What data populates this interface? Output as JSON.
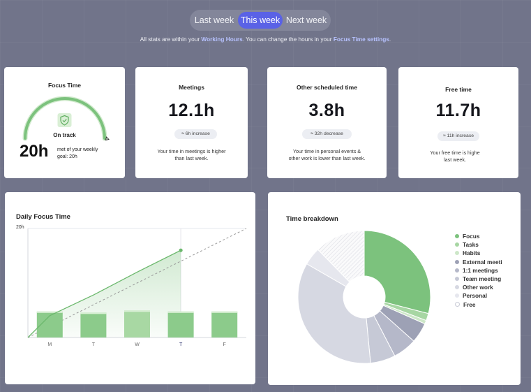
{
  "tabs": [
    {
      "label": "Last week"
    },
    {
      "label": "This week"
    },
    {
      "label": "Next week"
    }
  ],
  "note": {
    "part1": "All stats are within your ",
    "link1": "Working Hours",
    "part2": ". You can change the hours in your ",
    "link2": "Focus Time settings",
    "part3": "."
  },
  "focus": {
    "title": "Focus Time",
    "status": "On track",
    "value": "20h",
    "desc_line1": "met of your weekly",
    "desc_line2": "goal: 20h",
    "progress": 1.0
  },
  "meetings": {
    "title": "Meetings",
    "value": "12.1h",
    "badge": "≈ 6h increase",
    "desc_line1": "Your time in meetings is higher",
    "desc_line2": "than last week."
  },
  "other": {
    "title": "Other scheduled time",
    "value": "3.8h",
    "badge": "≈ 32h decrease",
    "desc_line1": "Your time in personal events &",
    "desc_line2": "other work is lower than last week."
  },
  "free": {
    "title": "Free time",
    "value": "11.7h",
    "badge": "≈ 11h increase",
    "desc_line1": "Your free time is highe",
    "desc_line2": "last week."
  },
  "daily": {
    "title": "Daily Focus Time",
    "ytick": "20h",
    "days": [
      "M",
      "T",
      "W",
      "T",
      "F"
    ]
  },
  "breakdown": {
    "title": "Time breakdown",
    "legend": [
      {
        "label": "Focus",
        "color": "#7cc27d"
      },
      {
        "label": "Tasks",
        "color": "#a7d6a3"
      },
      {
        "label": "Habits",
        "color": "#cde7c8"
      },
      {
        "label": "External meeti",
        "color": "#9da1b5"
      },
      {
        "label": "1:1 meetings",
        "color": "#b5b8c9"
      },
      {
        "label": "Team meeting",
        "color": "#c6c9d6"
      },
      {
        "label": "Other work",
        "color": "#d6d8e2"
      },
      {
        "label": "Personal",
        "color": "#e6e7ee"
      },
      {
        "label": "Free",
        "color": "#ffffff"
      }
    ]
  },
  "chart_data": [
    {
      "type": "bar",
      "title": "Daily Focus Time",
      "categories": [
        "M",
        "T",
        "W",
        "T",
        "F"
      ],
      "values": [
        4,
        3.8,
        4.2,
        4,
        4
      ],
      "ylim": [
        0,
        20
      ],
      "yticks": [
        "20h"
      ],
      "line_cumulative": [
        0,
        4,
        7.8,
        12,
        16
      ],
      "goal_line": [
        0,
        20
      ]
    },
    {
      "type": "pie",
      "title": "Time breakdown",
      "categories": [
        "Focus",
        "Tasks",
        "Habits",
        "External meeti",
        "1:1 meetings",
        "Team meeting",
        "Other work",
        "Personal",
        "Free"
      ],
      "values": [
        20,
        1.2,
        0.6,
        3.4,
        4.0,
        4.2,
        24,
        3.0,
        8.5
      ]
    }
  ]
}
